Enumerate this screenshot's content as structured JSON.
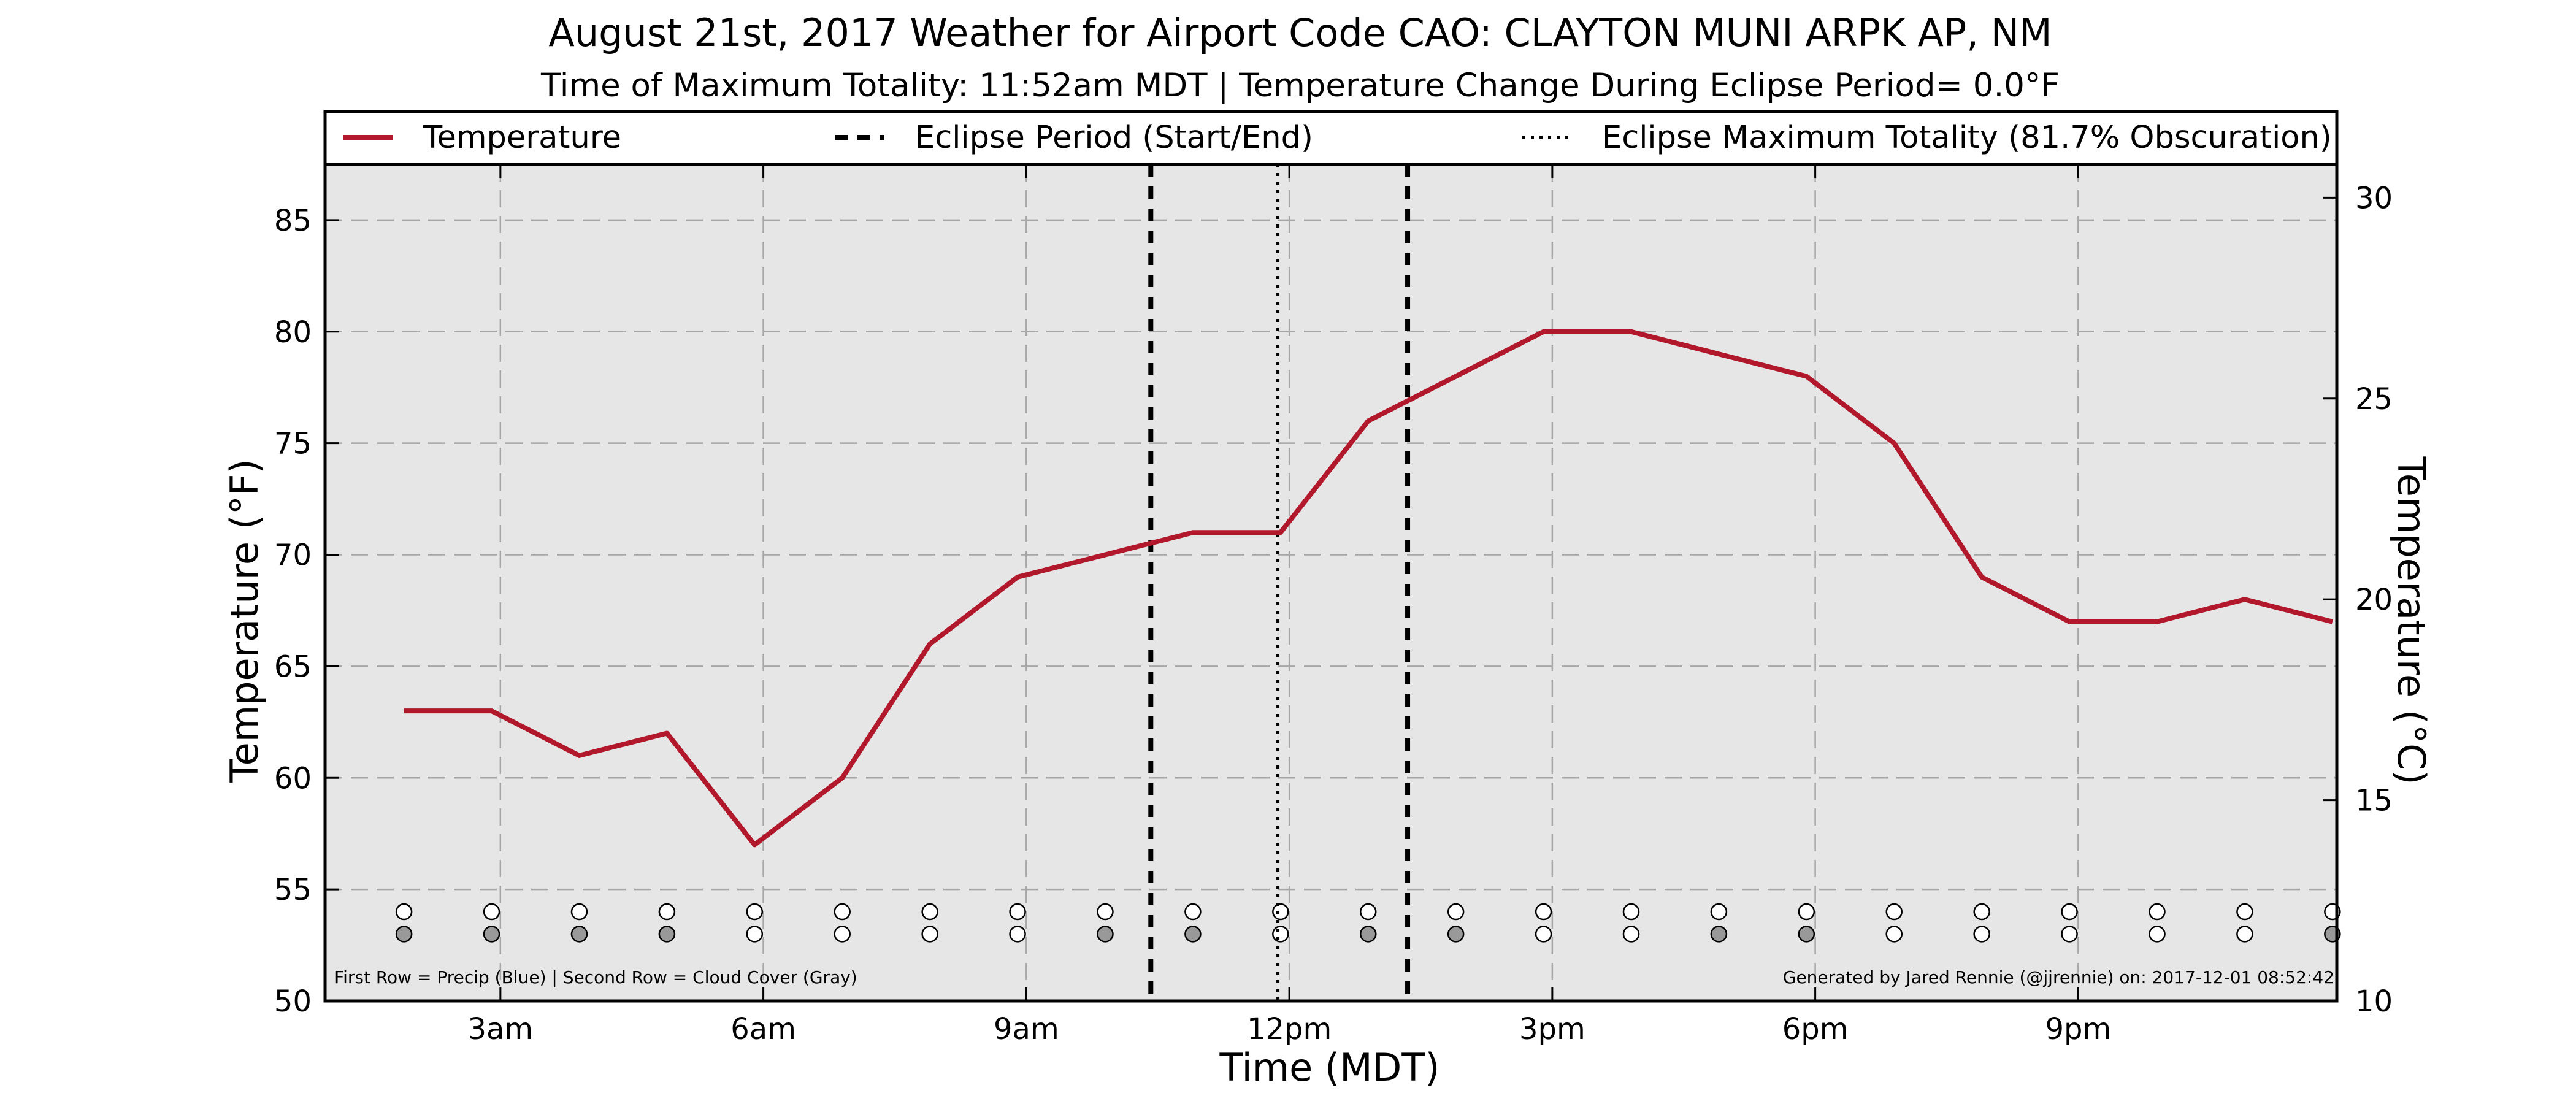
{
  "chart_data": {
    "type": "line",
    "title": "August 21st, 2017 Weather for Airport Code CAO: CLAYTON MUNI ARPK AP, NM",
    "subtitle": "Time of Maximum Totality: 11:52am MDT | Temperature Change During Eclipse Period= 0.0°F",
    "xlabel": "Time (MDT)",
    "ylabel": "Temperature (°F)",
    "y2label": "Temperature (°C)",
    "ylim": [
      50,
      87.5
    ],
    "y2lim": [
      10,
      30.83
    ],
    "xlim": [
      1.0,
      23.95
    ],
    "x_ticks": [
      {
        "x": 3,
        "label": "3am"
      },
      {
        "x": 6,
        "label": "6am"
      },
      {
        "x": 9,
        "label": "9am"
      },
      {
        "x": 12,
        "label": "12pm"
      },
      {
        "x": 15,
        "label": "3pm"
      },
      {
        "x": 18,
        "label": "6pm"
      },
      {
        "x": 21,
        "label": "9pm"
      }
    ],
    "y_ticks": [
      50,
      55,
      60,
      65,
      70,
      75,
      80,
      85
    ],
    "y2_ticks": [
      10,
      15,
      20,
      25,
      30
    ],
    "grid": true,
    "legend_position": "top",
    "legend": [
      {
        "label": "Temperature",
        "style": "solid"
      },
      {
        "label": "Eclipse Period (Start/End)",
        "style": "dashed"
      },
      {
        "label": "Eclipse Maximum Totality (81.7% Obscuration)",
        "style": "dotted"
      }
    ],
    "series": [
      {
        "name": "Temperature",
        "color": "#b2182b",
        "x": [
          1.9,
          2.9,
          3.9,
          4.9,
          5.9,
          6.9,
          7.9,
          8.9,
          9.9,
          10.9,
          11.9,
          12.9,
          13.9,
          14.9,
          15.9,
          16.9,
          17.9,
          18.9,
          19.9,
          20.9,
          21.9,
          22.9,
          23.9
        ],
        "y": [
          63,
          63,
          61,
          62,
          57,
          60,
          66,
          69,
          70,
          71,
          71,
          76,
          78,
          80,
          80,
          79,
          78,
          75,
          69,
          67,
          67,
          68,
          67
        ]
      }
    ],
    "eclipse_lines": [
      {
        "label": "Eclipse Period (Start/End)",
        "x": 10.42,
        "style": "dashed"
      },
      {
        "label": "Eclipse Maximum Totality (81.7% Obscuration)",
        "x": 11.87,
        "style": "dotted"
      },
      {
        "label": "Eclipse Period (Start/End)",
        "x": 13.35,
        "style": "dashed"
      }
    ],
    "indicator_rows": {
      "y_values": {
        "precip": 54,
        "cloud": 53
      },
      "x": [
        1.9,
        2.9,
        3.9,
        4.9,
        5.9,
        6.9,
        7.9,
        8.9,
        9.9,
        10.9,
        11.9,
        12.9,
        13.9,
        14.9,
        15.9,
        16.9,
        17.9,
        18.9,
        19.9,
        20.9,
        21.9,
        22.9,
        23.9
      ],
      "precip": [
        0,
        0,
        0,
        0,
        0,
        0,
        0,
        0,
        0,
        0,
        0,
        0,
        0,
        0,
        0,
        0,
        0,
        0,
        0,
        0,
        0,
        0,
        0
      ],
      "cloud": [
        1,
        1,
        1,
        1,
        0,
        0,
        0,
        0,
        1,
        1,
        0,
        1,
        1,
        0,
        0,
        1,
        1,
        0,
        0,
        0,
        0,
        0,
        1
      ],
      "colors": {
        "empty": "#ffffff",
        "cloud": "#999999",
        "precip": "#4a90d9"
      }
    },
    "footnote_left": "First Row = Precip (Blue) | Second Row = Cloud Cover (Gray)",
    "footnote_right": "Generated by Jared Rennie (@jjrennie) on: 2017-12-01 08:52:42",
    "colors": {
      "plot_bg": "#e6e6e6",
      "grid": "#a6a6a6",
      "temperature": "#b2182b"
    }
  }
}
